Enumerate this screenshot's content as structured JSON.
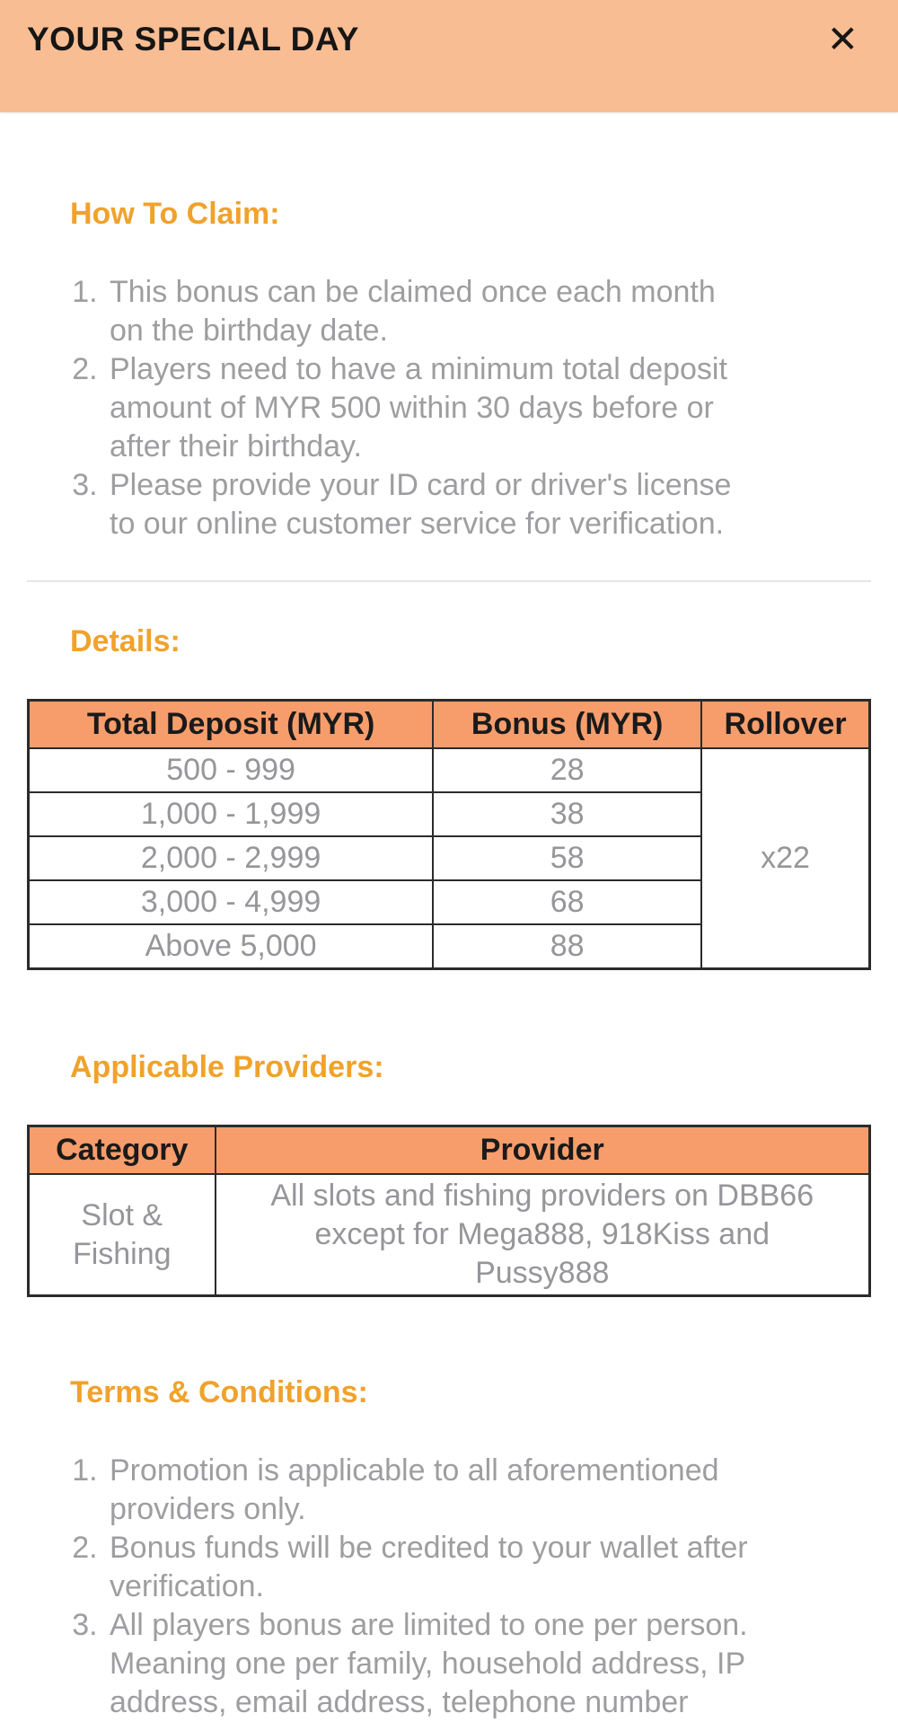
{
  "modal": {
    "title": "YOUR SPECIAL DAY",
    "close_icon": "✕"
  },
  "colors": {
    "header_bar_bg": "#F9BD93",
    "table_header_bg": "#F79D6C",
    "section_heading": "#F0A22B",
    "body_text": "#9E9EA1",
    "table_text": "#96969A",
    "table_border": "#2B2B2B",
    "title_text": "#161616"
  },
  "how_to_claim": {
    "heading": "How To Claim:",
    "items": [
      "This bonus can be claimed once each month on the birthday date.",
      "Players need to have a minimum total deposit amount of MYR 500 within 30 days before or after their birthday.",
      "Please provide your ID card or driver's license to our online customer service for verification."
    ]
  },
  "details": {
    "heading": "Details:",
    "table": {
      "col_deposit": "Total Deposit (MYR)",
      "col_bonus": "Bonus (MYR)",
      "col_rollover": "Rollover",
      "rows": [
        {
          "deposit": "500 - 999",
          "bonus": "28"
        },
        {
          "deposit": "1,000 - 1,999",
          "bonus": "38"
        },
        {
          "deposit": "2,000 - 2,999",
          "bonus": "58"
        },
        {
          "deposit": "3,000 - 4,999",
          "bonus": "68"
        },
        {
          "deposit": "Above 5,000",
          "bonus": "88"
        }
      ],
      "rollover": "x22"
    }
  },
  "providers": {
    "heading": "Applicable Providers:",
    "table": {
      "col_category": "Category",
      "col_provider": "Provider",
      "category": "Slot & Fishing",
      "provider": "All slots and fishing providers on DBB66 except for Mega888, 918Kiss and Pussy888"
    }
  },
  "terms": {
    "heading": "Terms & Conditions:",
    "items": [
      "Promotion is applicable to all aforementioned providers only.",
      "Bonus funds will be credited to your wallet after verification.",
      "All players bonus are limited to one per person. Meaning one per family, household address, IP address, email address, telephone number"
    ]
  }
}
